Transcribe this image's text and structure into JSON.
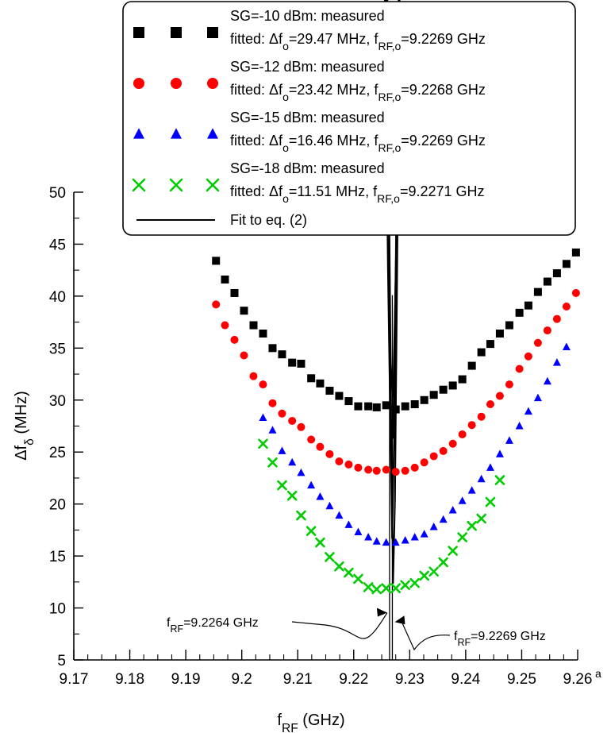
{
  "chart_data": {
    "type": "scatter",
    "xlabel": {
      "main": "f",
      "sub": "RF",
      "unit": "(GHz)"
    },
    "ylabel": {
      "main": "Δf",
      "sub": "δ",
      "unit": "(MHz)"
    },
    "xlim": [
      9.17,
      9.26
    ],
    "ylim": [
      5,
      50
    ],
    "x_ticks": [
      "9.17",
      "9.18",
      "9.19",
      "9.2",
      "9.21",
      "9.22",
      "9.23",
      "9.24",
      "9.25",
      "9.26"
    ],
    "x_tick_suffix": "a",
    "y_ticks": [
      "5",
      "10",
      "15",
      "20",
      "25",
      "30",
      "35",
      "40",
      "45",
      "50"
    ],
    "x_tick_values": [
      9.17,
      9.18,
      9.19,
      9.2,
      9.21,
      9.22,
      9.23,
      9.24,
      9.25,
      9.26
    ],
    "y_tick_values": [
      5,
      10,
      15,
      20,
      25,
      30,
      35,
      40,
      45,
      50
    ],
    "grid": false,
    "legend": {
      "placement": "top",
      "entries": [
        {
          "series": 0,
          "line1": "SG=-10 dBm: measured",
          "fit_prefix": "fitted: Δf",
          "fit_sub1": "o",
          "fit_mid": "=29.47 MHz, f",
          "fit_sub2": "RF,o",
          "fit_suffix": "=9.2269 GHz"
        },
        {
          "series": 1,
          "line1": "SG=-12 dBm: measured",
          "fit_prefix": "fitted:  Δf",
          "fit_sub1": "o",
          "fit_mid": "=23.42 MHz, f",
          "fit_sub2": "RF,o",
          "fit_suffix": "=9.2268 GHz"
        },
        {
          "series": 2,
          "line1": "SG=-15 dBm: measured",
          "fit_prefix": "fitted: Δf",
          "fit_sub1": "o",
          "fit_mid": "=16.46 MHz, f",
          "fit_sub2": "RF,o",
          "fit_suffix": "=9.2269 GHz"
        },
        {
          "series": 3,
          "line1": "SG=-18 dBm: measured",
          "fit_prefix": "fitted: Δf",
          "fit_sub1": "o",
          "fit_mid": "=11.51 MHz, f",
          "fit_sub2": "RF,o",
          "fit_suffix": "=9.2271 GHz"
        }
      ],
      "fit_label": "Fit to eq. (2)"
    },
    "series": [
      {
        "name": "SG=-10 dBm: measured",
        "marker": "square",
        "color": "#000000",
        "fit": {
          "delta_f0": 29.47,
          "f0": 9.2269,
          "a": 50000
        },
        "fit_range": [
          9.195,
          9.26
        ],
        "points": [
          [
            9.1954,
            43.4
          ],
          [
            9.197,
            41.6
          ],
          [
            9.1987,
            40.3
          ],
          [
            9.2004,
            38.6
          ],
          [
            9.2021,
            37.2
          ],
          [
            9.2038,
            36.4
          ],
          [
            9.2055,
            35.0
          ],
          [
            9.2072,
            34.4
          ],
          [
            9.209,
            33.6
          ],
          [
            9.2106,
            33.5
          ],
          [
            9.2124,
            32.1
          ],
          [
            9.214,
            31.6
          ],
          [
            9.2157,
            30.9
          ],
          [
            9.2174,
            30.4
          ],
          [
            9.2191,
            29.9
          ],
          [
            9.2208,
            29.4
          ],
          [
            9.2226,
            29.4
          ],
          [
            9.2241,
            29.3
          ],
          [
            9.2258,
            29.5
          ],
          [
            9.2275,
            29.1
          ],
          [
            9.2292,
            29.4
          ],
          [
            9.2309,
            29.6
          ],
          [
            9.2326,
            30.0
          ],
          [
            9.2343,
            30.5
          ],
          [
            9.236,
            31.0
          ],
          [
            9.2377,
            31.4
          ],
          [
            9.2394,
            32.0
          ],
          [
            9.2411,
            33.3
          ],
          [
            9.2428,
            34.6
          ],
          [
            9.2444,
            35.4
          ],
          [
            9.2461,
            36.4
          ],
          [
            9.2478,
            37.2
          ],
          [
            9.2496,
            38.4
          ],
          [
            9.2512,
            39.1
          ],
          [
            9.2529,
            40.4
          ],
          [
            9.2546,
            41.4
          ],
          [
            9.2563,
            42.2
          ],
          [
            9.258,
            43.1
          ],
          [
            9.2597,
            44.2
          ]
        ]
      },
      {
        "name": "SG=-12 dBm: measured",
        "marker": "circle",
        "color": "#ff0000",
        "fit": {
          "delta_f0": 23.42,
          "f0": 9.2268,
          "a": 51500
        },
        "fit_range": [
          9.195,
          9.26
        ],
        "points": [
          [
            9.1954,
            39.2
          ],
          [
            9.197,
            37.2
          ],
          [
            9.1987,
            35.8
          ],
          [
            9.2004,
            34.3
          ],
          [
            9.2021,
            32.3
          ],
          [
            9.2038,
            31.5
          ],
          [
            9.2055,
            29.7
          ],
          [
            9.2072,
            28.7
          ],
          [
            9.209,
            28.0
          ],
          [
            9.2106,
            27.4
          ],
          [
            9.2124,
            26.2
          ],
          [
            9.214,
            25.5
          ],
          [
            9.2157,
            24.8
          ],
          [
            9.2174,
            24.1
          ],
          [
            9.2191,
            23.8
          ],
          [
            9.2208,
            23.5
          ],
          [
            9.2226,
            23.3
          ],
          [
            9.2241,
            23.2
          ],
          [
            9.2258,
            23.3
          ],
          [
            9.2275,
            23.1
          ],
          [
            9.2292,
            23.2
          ],
          [
            9.2309,
            23.5
          ],
          [
            9.2326,
            24.0
          ],
          [
            9.2343,
            24.6
          ],
          [
            9.236,
            25.1
          ],
          [
            9.2377,
            25.8
          ],
          [
            9.2394,
            26.7
          ],
          [
            9.2411,
            27.6
          ],
          [
            9.2428,
            28.4
          ],
          [
            9.2444,
            29.6
          ],
          [
            9.2461,
            30.4
          ],
          [
            9.2478,
            31.5
          ],
          [
            9.2496,
            33.0
          ],
          [
            9.2512,
            34.2
          ],
          [
            9.2529,
            35.5
          ],
          [
            9.2546,
            36.7
          ],
          [
            9.2563,
            37.8
          ],
          [
            9.258,
            39.0
          ],
          [
            9.2597,
            40.3
          ]
        ]
      },
      {
        "name": "SG=-15 dBm: measured",
        "marker": "triangle",
        "color": "#0000ff",
        "fit": {
          "delta_f0": 16.46,
          "f0": 9.2269,
          "a": 60000
        },
        "fit_range": [
          9.202,
          9.26
        ],
        "points": [
          [
            9.2038,
            28.3
          ],
          [
            9.2055,
            27.1
          ],
          [
            9.2072,
            25.1
          ],
          [
            9.209,
            24.0
          ],
          [
            9.2106,
            23.0
          ],
          [
            9.2124,
            21.8
          ],
          [
            9.214,
            20.7
          ],
          [
            9.2157,
            19.8
          ],
          [
            9.2174,
            18.9
          ],
          [
            9.2191,
            18.0
          ],
          [
            9.2208,
            17.3
          ],
          [
            9.2226,
            16.8
          ],
          [
            9.2241,
            16.4
          ],
          [
            9.2258,
            16.3
          ],
          [
            9.2275,
            16.3
          ],
          [
            9.2292,
            16.5
          ],
          [
            9.2309,
            16.8
          ],
          [
            9.2326,
            17.1
          ],
          [
            9.2343,
            17.8
          ],
          [
            9.236,
            18.5
          ],
          [
            9.2377,
            19.4
          ],
          [
            9.2394,
            20.3
          ],
          [
            9.2411,
            21.3
          ],
          [
            9.2428,
            22.4
          ],
          [
            9.2444,
            23.5
          ],
          [
            9.2461,
            24.8
          ],
          [
            9.2478,
            26.1
          ],
          [
            9.2496,
            27.5
          ],
          [
            9.2512,
            28.9
          ],
          [
            9.2529,
            30.2
          ],
          [
            9.2546,
            31.8
          ],
          [
            9.2563,
            33.6
          ],
          [
            9.258,
            35.1
          ]
        ]
      },
      {
        "name": "SG=-18 dBm: measured",
        "marker": "cross",
        "color": "#00cc00",
        "fit": {
          "delta_f0": 11.51,
          "f0": 9.2271,
          "a": 62000
        },
        "fit_range": [
          9.202,
          9.25
        ],
        "points": [
          [
            9.2038,
            25.8
          ],
          [
            9.2055,
            24.0
          ],
          [
            9.2072,
            21.8
          ],
          [
            9.209,
            20.8
          ],
          [
            9.2106,
            18.9
          ],
          [
            9.2124,
            17.4
          ],
          [
            9.214,
            16.3
          ],
          [
            9.2157,
            14.9
          ],
          [
            9.2174,
            14.0
          ],
          [
            9.2191,
            13.4
          ],
          [
            9.2208,
            12.8
          ],
          [
            9.2226,
            12.0
          ],
          [
            9.2241,
            11.8
          ],
          [
            9.2258,
            11.9
          ],
          [
            9.2275,
            11.9
          ],
          [
            9.2292,
            12.2
          ],
          [
            9.2309,
            12.4
          ],
          [
            9.2326,
            13.1
          ],
          [
            9.2343,
            13.5
          ],
          [
            9.236,
            14.4
          ],
          [
            9.2377,
            15.5
          ],
          [
            9.2394,
            16.8
          ],
          [
            9.2411,
            17.9
          ],
          [
            9.2428,
            18.6
          ],
          [
            9.2444,
            20.2
          ],
          [
            9.2461,
            22.3
          ]
        ]
      }
    ],
    "vertical_lines": [
      9.2264,
      9.2269
    ],
    "annotations": [
      {
        "main": "f",
        "sub": "RF",
        "suffix": "=9.2264 GHz",
        "target_x": 9.2264,
        "target_y": 10.0
      },
      {
        "main": "f",
        "sub": "RF",
        "suffix": "=9.2269 GHz",
        "target_x": 9.2269,
        "target_y": 8.8
      }
    ]
  }
}
